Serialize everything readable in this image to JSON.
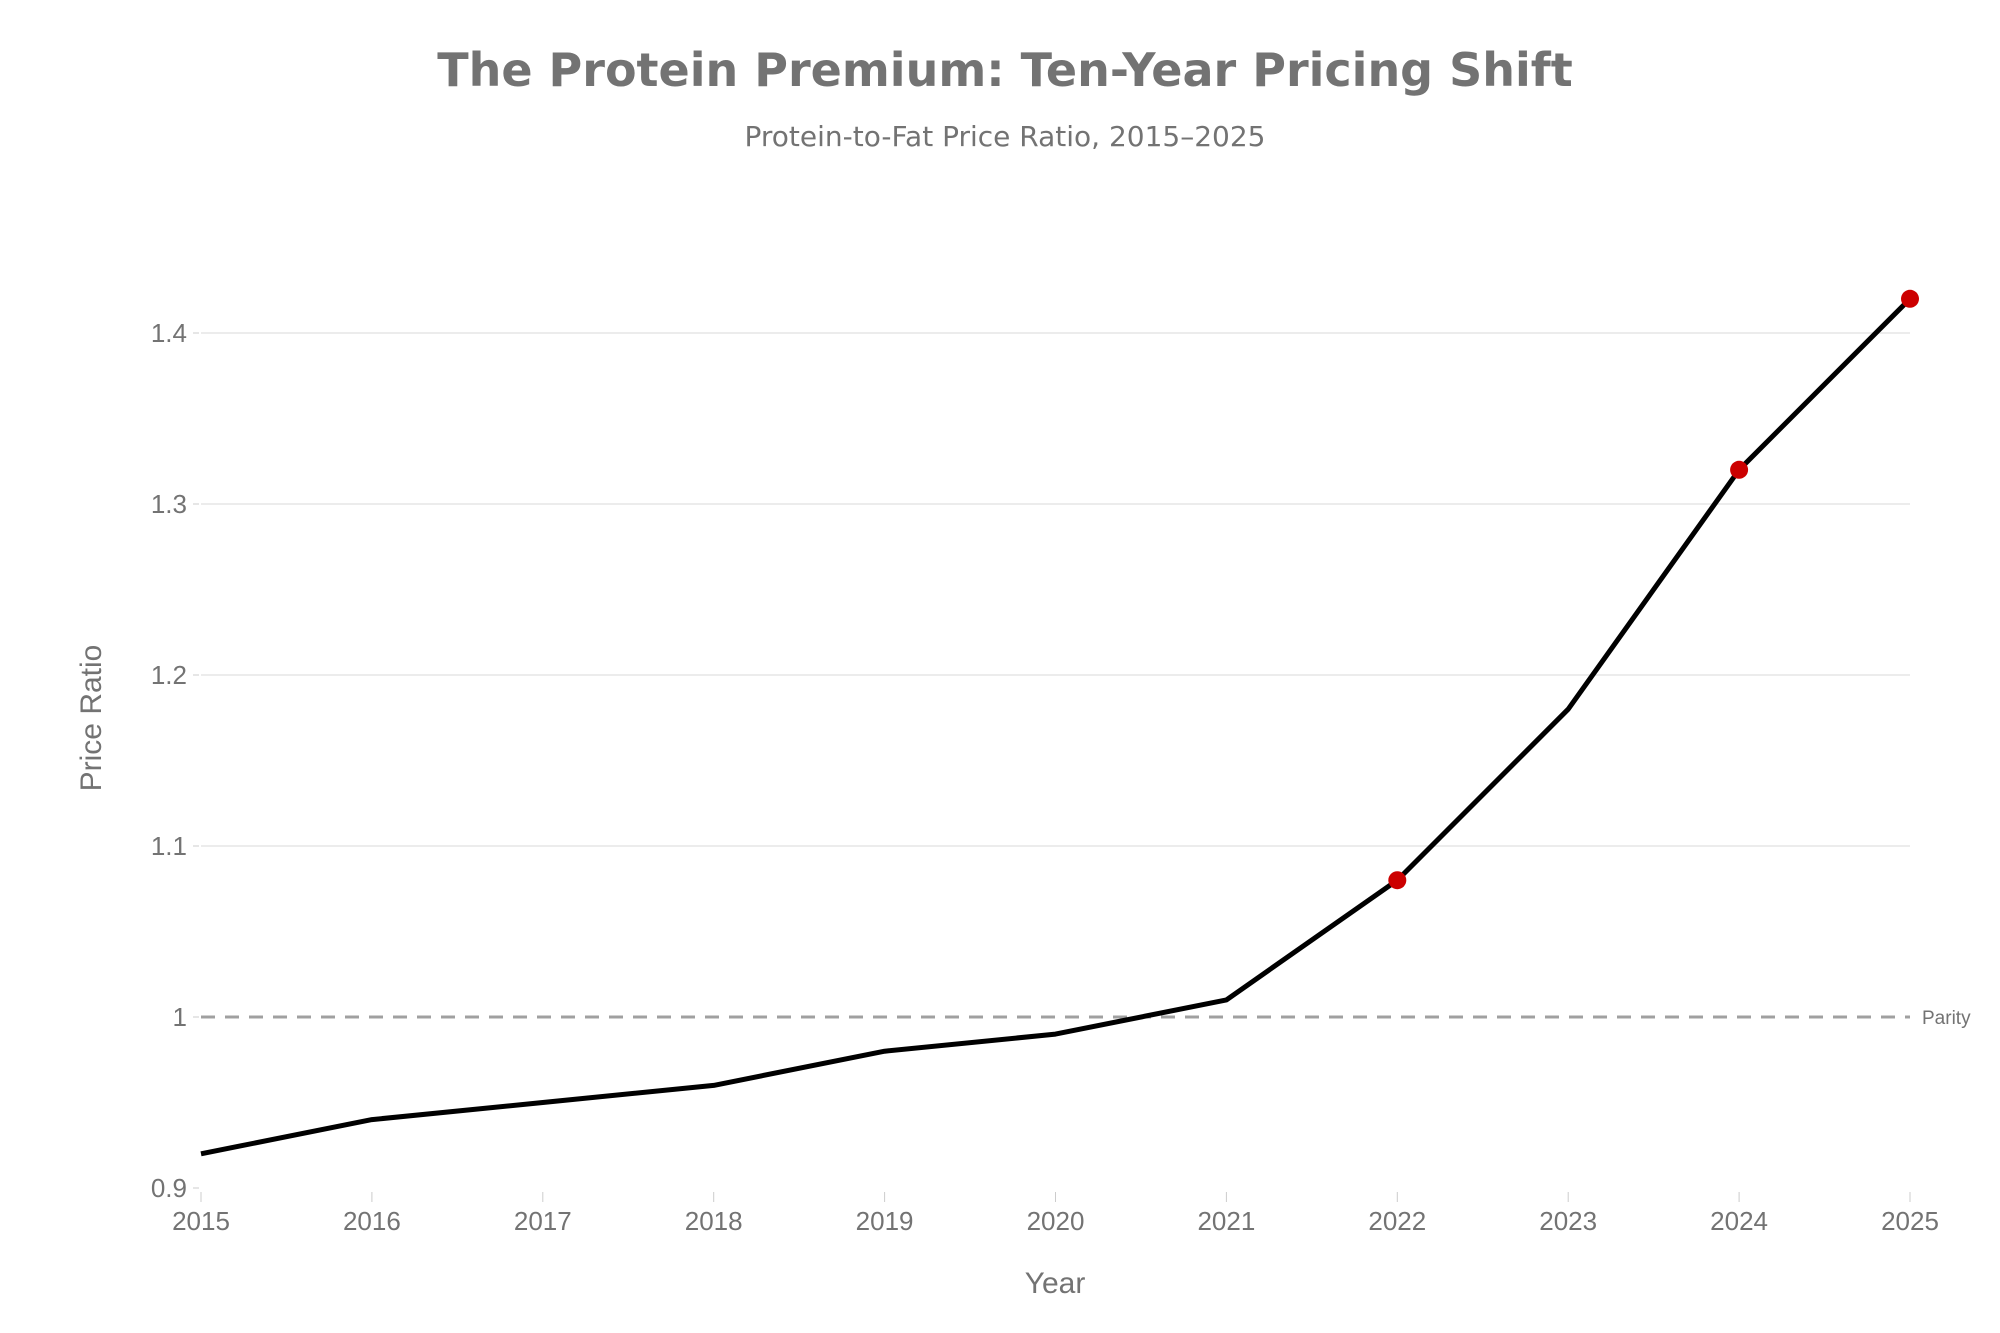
{
  "chart_data": {
    "type": "line",
    "title": "The Protein Premium: Ten-Year Pricing Shift",
    "subtitle": "Protein-to-Fat Price Ratio, 2015–2025",
    "xlabel": "Year",
    "ylabel": "Price Ratio",
    "x": [
      2015,
      2016,
      2017,
      2018,
      2019,
      2020,
      2021,
      2022,
      2023,
      2024,
      2025
    ],
    "values": [
      0.92,
      0.94,
      0.95,
      0.96,
      0.98,
      0.99,
      1.01,
      1.08,
      1.18,
      1.32,
      1.42
    ],
    "highlighted_points": [
      2022,
      2024,
      2025
    ],
    "xlim": [
      2015,
      2025
    ],
    "ylim": [
      0.9,
      1.44
    ],
    "x_ticks": [
      "2015",
      "2016",
      "2017",
      "2018",
      "2019",
      "2020",
      "2021",
      "2022",
      "2023",
      "2024",
      "2025"
    ],
    "y_ticks": [
      {
        "value": 0.9,
        "label": "0.9"
      },
      {
        "value": 1.0,
        "label": "1"
      },
      {
        "value": 1.1,
        "label": "1.1"
      },
      {
        "value": 1.2,
        "label": "1.2"
      },
      {
        "value": 1.3,
        "label": "1.3"
      },
      {
        "value": 1.4,
        "label": "1.4"
      }
    ],
    "grid": "horizontal",
    "reference_line": {
      "value": 1.0,
      "label": "Parity",
      "style": "dashed"
    },
    "colors": {
      "line": "#000000",
      "highlight": "#cc0000",
      "reference": "#a0a0a0",
      "grid": "#ececec",
      "text": "#737373"
    }
  }
}
